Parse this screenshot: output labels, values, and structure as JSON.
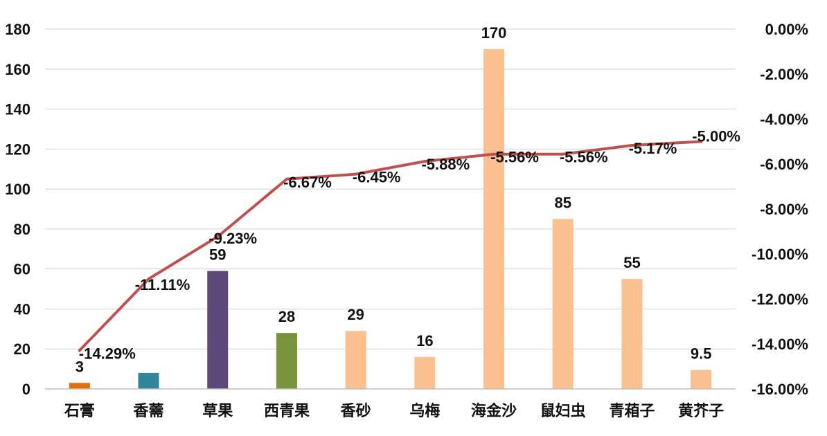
{
  "chart_data": {
    "type": "bar",
    "title": "",
    "xlabel": "",
    "ylabel": "",
    "categories": [
      "石膏",
      "香薷",
      "草果",
      "西青果",
      "香砂",
      "乌梅",
      "海金沙",
      "鼠妇虫",
      "青葙子",
      "黄芥子"
    ],
    "series": [
      {
        "type": "bar",
        "values": [
          3,
          8,
          59,
          28,
          29,
          16,
          170,
          85,
          55,
          9.5
        ],
        "value_labels": [
          "3",
          "",
          "59",
          "28",
          "29",
          "16",
          "170",
          "85",
          "55",
          "9.5"
        ],
        "colors": [
          "#E46C0A",
          "#31859C",
          "#5F497A",
          "#77933C",
          "#FAC090",
          "#FAC090",
          "#FAC090",
          "#FAC090",
          "#FAC090",
          "#FAC090"
        ],
        "axis": "left"
      },
      {
        "type": "line",
        "values": [
          -14.29,
          -11.11,
          -9.23,
          -6.67,
          -6.45,
          -5.88,
          -5.56,
          -5.56,
          -5.17,
          -5.0
        ],
        "value_labels": [
          "-14.29%",
          "-11.11%",
          "-9.23%",
          "-6.67%",
          "-6.45%",
          "-5.88%",
          "-5.56%",
          "-5.56%",
          "-5.17%",
          "-5.00%"
        ],
        "color": "#C0504D",
        "axis": "right"
      }
    ],
    "y_left": {
      "ylim": [
        0,
        180
      ],
      "ticks": [
        "0",
        "20",
        "40",
        "60",
        "80",
        "100",
        "120",
        "140",
        "160",
        "180"
      ]
    },
    "y_right": {
      "ylim": [
        -16,
        0
      ],
      "ticks": [
        "0.00%",
        "-2.00%",
        "-4.00%",
        "-6.00%",
        "-8.00%",
        "-10.00%",
        "-12.00%",
        "-14.00%",
        "-16.00%"
      ]
    },
    "grid": true,
    "legend": "none"
  }
}
